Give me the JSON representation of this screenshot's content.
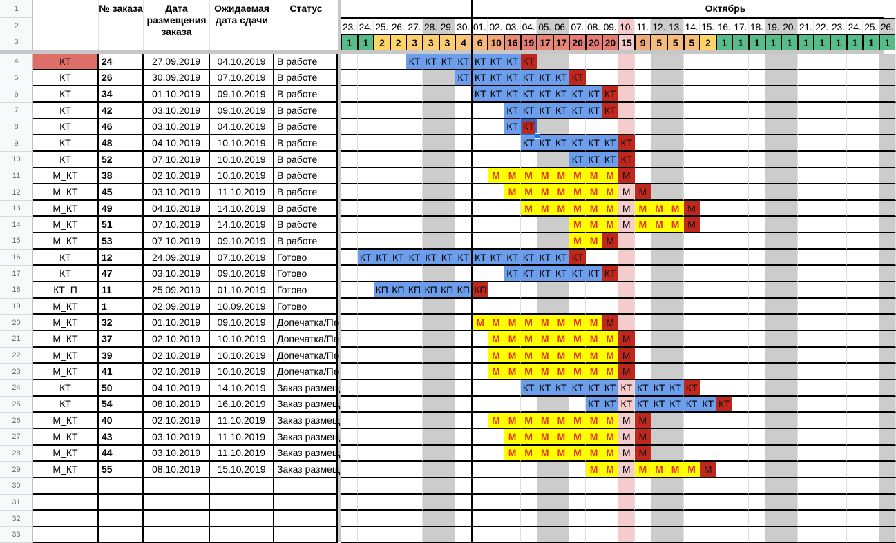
{
  "header": {
    "type_col": "",
    "num": "№ заказа",
    "placed": "Дата размещения заказа",
    "due": "Ожидаемая дата сдачи",
    "status": "Статус"
  },
  "month": "Октябрь",
  "days": [
    {
      "label": "23.",
      "load": 1
    },
    {
      "label": "24.",
      "load": 1
    },
    {
      "label": "25.",
      "load": 2
    },
    {
      "label": "26.",
      "load": 2
    },
    {
      "label": "27.",
      "load": 3
    },
    {
      "label": "28.",
      "load": 3
    },
    {
      "label": "29.",
      "load": 3
    },
    {
      "label": "30.",
      "load": 4
    },
    {
      "label": "01.",
      "load": 6
    },
    {
      "label": "02.",
      "load": 10
    },
    {
      "label": "03.",
      "load": 16
    },
    {
      "label": "04.",
      "load": 19
    },
    {
      "label": "05.",
      "load": 17
    },
    {
      "label": "06.",
      "load": 17
    },
    {
      "label": "07.",
      "load": 20
    },
    {
      "label": "08.",
      "load": 20
    },
    {
      "label": "09.",
      "load": 20
    },
    {
      "label": "10.",
      "load": 15
    },
    {
      "label": "11.",
      "load": 9
    },
    {
      "label": "12.",
      "load": 5
    },
    {
      "label": "13.",
      "load": 5
    },
    {
      "label": "14.",
      "load": 5
    },
    {
      "label": "15.",
      "load": 2
    },
    {
      "label": "16.",
      "load": 1
    },
    {
      "label": "17.",
      "load": 1
    },
    {
      "label": "18.",
      "load": 1
    },
    {
      "label": "19.",
      "load": 1
    },
    {
      "label": "20.",
      "load": 1
    },
    {
      "label": "21.",
      "load": 1
    },
    {
      "label": "22.",
      "load": 1
    },
    {
      "label": "23.",
      "load": 1
    },
    {
      "label": "24.",
      "load": 1
    },
    {
      "label": "25.",
      "load": 1
    },
    {
      "label": "26.",
      "load": 1
    }
  ],
  "weekends": [
    "28.09",
    "29.09",
    "05.10",
    "06.10",
    "12.10",
    "13.10",
    "19.10",
    "20.10",
    "26.10"
  ],
  "today": "10.10",
  "selected_cell": {
    "row": 8,
    "date": "04.10"
  },
  "colors": {
    "work": "#6d9eeb",
    "deadline": "#c0271d",
    "m": "#ffff00",
    "m_text": "#e8301c",
    "weekend": "#cccccc",
    "today": "#f4cccc",
    "highlight": "#dd6f68",
    "load_low": "#57bb8a",
    "load_mid": "#ffd666",
    "load_high": "#e67c73"
  },
  "rows": [
    {
      "n": "1"
    },
    {
      "n": "2"
    },
    {
      "n": "3"
    },
    {
      "n": "4",
      "type": "КТ",
      "highlight": true,
      "num": "24",
      "placed": "27.09.2019",
      "due": "04.10.2019",
      "status": "В работе",
      "bars": [
        {
          "text": "КТ",
          "from": "27.09",
          "to": "03.10",
          "kind": "work"
        },
        {
          "text": "КТ",
          "from": "04.10",
          "to": "04.10",
          "kind": "deadline"
        }
      ]
    },
    {
      "n": "5",
      "type": "КТ",
      "num": "26",
      "placed": "30.09.2019",
      "due": "07.10.2019",
      "status": "В работе",
      "bars": [
        {
          "text": "КТ",
          "from": "30.09",
          "to": "06.10",
          "kind": "work"
        },
        {
          "text": "КТ",
          "from": "07.10",
          "to": "07.10",
          "kind": "deadline"
        }
      ]
    },
    {
      "n": "6",
      "type": "КТ",
      "num": "34",
      "placed": "01.10.2019",
      "due": "09.10.2019",
      "status": "В работе",
      "bars": [
        {
          "text": "КТ",
          "from": "01.10",
          "to": "08.10",
          "kind": "work"
        },
        {
          "text": "КТ",
          "from": "09.10",
          "to": "09.10",
          "kind": "deadline"
        }
      ]
    },
    {
      "n": "7",
      "type": "КТ",
      "num": "42",
      "placed": "03.10.2019",
      "due": "09.10.2019",
      "status": "В работе",
      "bars": [
        {
          "text": "КТ",
          "from": "03.10",
          "to": "08.10",
          "kind": "work"
        },
        {
          "text": "КТ",
          "from": "09.10",
          "to": "09.10",
          "kind": "deadline"
        }
      ]
    },
    {
      "n": "8",
      "type": "КТ",
      "num": "46",
      "placed": "03.10.2019",
      "due": "04.10.2019",
      "status": "В работе",
      "bars": [
        {
          "text": "КТ",
          "from": "03.10",
          "to": "03.10",
          "kind": "work"
        },
        {
          "text": "КТ",
          "from": "04.10",
          "to": "04.10",
          "kind": "deadline"
        }
      ]
    },
    {
      "n": "9",
      "type": "КТ",
      "num": "48",
      "placed": "04.10.2019",
      "due": "10.10.2019",
      "status": "В работе",
      "bars": [
        {
          "text": "КТ",
          "from": "04.10",
          "to": "09.10",
          "kind": "work"
        },
        {
          "text": "КТ",
          "from": "10.10",
          "to": "10.10",
          "kind": "deadline"
        }
      ]
    },
    {
      "n": "10",
      "type": "КТ",
      "num": "52",
      "placed": "07.10.2019",
      "due": "10.10.2019",
      "status": "В работе",
      "bars": [
        {
          "text": "КТ",
          "from": "07.10",
          "to": "09.10",
          "kind": "work"
        },
        {
          "text": "КТ",
          "from": "10.10",
          "to": "10.10",
          "kind": "deadline"
        }
      ]
    },
    {
      "n": "11",
      "type": "М_КТ",
      "num": "38",
      "placed": "02.10.2019",
      "due": "10.10.2019",
      "status": "В работе",
      "bars": [
        {
          "text": "М",
          "from": "02.10",
          "to": "09.10",
          "kind": "m"
        },
        {
          "text": "М",
          "from": "10.10",
          "to": "10.10",
          "kind": "deadline"
        }
      ]
    },
    {
      "n": "12",
      "type": "М_КТ",
      "num": "45",
      "placed": "03.10.2019",
      "due": "11.10.2019",
      "status": "В работе",
      "bars": [
        {
          "text": "М",
          "from": "03.10",
          "to": "09.10",
          "kind": "m"
        },
        {
          "text": "М",
          "from": "10.10",
          "to": "10.10",
          "kind": "plain"
        },
        {
          "text": "М",
          "from": "11.10",
          "to": "11.10",
          "kind": "deadline"
        }
      ]
    },
    {
      "n": "13",
      "type": "М_КТ",
      "num": "49",
      "placed": "04.10.2019",
      "due": "14.10.2019",
      "status": "В работе",
      "bars": [
        {
          "text": "М",
          "from": "04.10",
          "to": "09.10",
          "kind": "m"
        },
        {
          "text": "М",
          "from": "10.10",
          "to": "10.10",
          "kind": "plain"
        },
        {
          "text": "М",
          "from": "11.10",
          "to": "13.10",
          "kind": "m"
        },
        {
          "text": "М",
          "from": "14.10",
          "to": "14.10",
          "kind": "deadline"
        }
      ]
    },
    {
      "n": "14",
      "type": "М_КТ",
      "num": "51",
      "placed": "07.10.2019",
      "due": "14.10.2019",
      "status": "В работе",
      "bars": [
        {
          "text": "М",
          "from": "07.10",
          "to": "09.10",
          "kind": "m"
        },
        {
          "text": "М",
          "from": "10.10",
          "to": "10.10",
          "kind": "plain"
        },
        {
          "text": "М",
          "from": "11.10",
          "to": "13.10",
          "kind": "m"
        },
        {
          "text": "М",
          "from": "14.10",
          "to": "14.10",
          "kind": "deadline"
        }
      ]
    },
    {
      "n": "15",
      "type": "М_КТ",
      "num": "53",
      "placed": "07.10.2019",
      "due": "09.10.2019",
      "status": "В работе",
      "bars": [
        {
          "text": "М",
          "from": "07.10",
          "to": "08.10",
          "kind": "m"
        },
        {
          "text": "М",
          "from": "09.10",
          "to": "09.10",
          "kind": "deadline"
        }
      ]
    },
    {
      "n": "16",
      "type": "КТ",
      "num": "12",
      "placed": "24.09.2019",
      "due": "07.10.2019",
      "status": "Готово",
      "bars": [
        {
          "text": "КТ",
          "from": "24.09",
          "to": "06.10",
          "kind": "work"
        },
        {
          "text": "КТ",
          "from": "07.10",
          "to": "07.10",
          "kind": "deadline"
        }
      ]
    },
    {
      "n": "17",
      "type": "КТ",
      "num": "47",
      "placed": "03.10.2019",
      "due": "09.10.2019",
      "status": "Готово",
      "bars": [
        {
          "text": "КТ",
          "from": "03.10",
          "to": "08.10",
          "kind": "work"
        },
        {
          "text": "КТ",
          "from": "09.10",
          "to": "09.10",
          "kind": "deadline"
        }
      ]
    },
    {
      "n": "18",
      "type": "КТ_П",
      "num": "11",
      "placed": "25.09.2019",
      "due": "01.10.2019",
      "status": "Готово",
      "bars": [
        {
          "text": "КП",
          "from": "25.09",
          "to": "30.09",
          "kind": "work"
        },
        {
          "text": "КП",
          "from": "01.10",
          "to": "01.10",
          "kind": "deadline"
        }
      ]
    },
    {
      "n": "19",
      "type": "М_КТ",
      "num": "1",
      "placed": "02.09.2019",
      "due": "10.09.2019",
      "status": "Готово",
      "bars": []
    },
    {
      "n": "20",
      "type": "М_КТ",
      "num": "32",
      "placed": "01.10.2019",
      "due": "09.10.2019",
      "status": "Допечатка/Пе",
      "bars": [
        {
          "text": "М",
          "from": "01.10",
          "to": "08.10",
          "kind": "m"
        },
        {
          "text": "М",
          "from": "09.10",
          "to": "09.10",
          "kind": "deadline"
        }
      ]
    },
    {
      "n": "21",
      "type": "М_КТ",
      "num": "37",
      "placed": "02.10.2019",
      "due": "10.10.2019",
      "status": "Допечатка/Пе",
      "bars": [
        {
          "text": "М",
          "from": "02.10",
          "to": "09.10",
          "kind": "m"
        },
        {
          "text": "М",
          "from": "10.10",
          "to": "10.10",
          "kind": "deadline"
        }
      ]
    },
    {
      "n": "22",
      "type": "М_КТ",
      "num": "39",
      "placed": "02.10.2019",
      "due": "10.10.2019",
      "status": "Допечатка/Пе",
      "bars": [
        {
          "text": "М",
          "from": "02.10",
          "to": "09.10",
          "kind": "m"
        },
        {
          "text": "М",
          "from": "10.10",
          "to": "10.10",
          "kind": "deadline"
        }
      ]
    },
    {
      "n": "23",
      "type": "М_КТ",
      "num": "41",
      "placed": "02.10.2019",
      "due": "10.10.2019",
      "status": "Допечатка/Пе",
      "bars": [
        {
          "text": "М",
          "from": "02.10",
          "to": "09.10",
          "kind": "m"
        },
        {
          "text": "М",
          "from": "10.10",
          "to": "10.10",
          "kind": "deadline"
        }
      ]
    },
    {
      "n": "24",
      "type": "КТ",
      "num": "50",
      "placed": "04.10.2019",
      "due": "14.10.2019",
      "status": "Заказ размещ",
      "bars": [
        {
          "text": "КТ",
          "from": "04.10",
          "to": "09.10",
          "kind": "work"
        },
        {
          "text": "КТ",
          "from": "10.10",
          "to": "10.10",
          "kind": "plain"
        },
        {
          "text": "КТ",
          "from": "11.10",
          "to": "13.10",
          "kind": "work"
        },
        {
          "text": "КТ",
          "from": "14.10",
          "to": "14.10",
          "kind": "deadline"
        }
      ]
    },
    {
      "n": "25",
      "type": "КТ",
      "num": "54",
      "placed": "08.10.2019",
      "due": "16.10.2019",
      "status": "Заказ размещ",
      "bars": [
        {
          "text": "КТ",
          "from": "08.10",
          "to": "09.10",
          "kind": "work"
        },
        {
          "text": "КТ",
          "from": "10.10",
          "to": "10.10",
          "kind": "plain"
        },
        {
          "text": "КТ",
          "from": "11.10",
          "to": "15.10",
          "kind": "work"
        },
        {
          "text": "КТ",
          "from": "16.10",
          "to": "16.10",
          "kind": "deadline"
        }
      ]
    },
    {
      "n": "26",
      "type": "М_КТ",
      "num": "40",
      "placed": "02.10.2019",
      "due": "11.10.2019",
      "status": "Заказ размещ",
      "bars": [
        {
          "text": "М",
          "from": "02.10",
          "to": "09.10",
          "kind": "m"
        },
        {
          "text": "М",
          "from": "10.10",
          "to": "10.10",
          "kind": "plain"
        },
        {
          "text": "М",
          "from": "11.10",
          "to": "11.10",
          "kind": "deadline"
        }
      ]
    },
    {
      "n": "27",
      "type": "М_КТ",
      "num": "43",
      "placed": "03.10.2019",
      "due": "11.10.2019",
      "status": "Заказ размещ",
      "bars": [
        {
          "text": "М",
          "from": "03.10",
          "to": "09.10",
          "kind": "m"
        },
        {
          "text": "М",
          "from": "10.10",
          "to": "10.10",
          "kind": "plain"
        },
        {
          "text": "М",
          "from": "11.10",
          "to": "11.10",
          "kind": "deadline"
        }
      ]
    },
    {
      "n": "28",
      "type": "М_КТ",
      "num": "44",
      "placed": "03.10.2019",
      "due": "11.10.2019",
      "status": "Заказ размещ",
      "bars": [
        {
          "text": "М",
          "from": "03.10",
          "to": "09.10",
          "kind": "m"
        },
        {
          "text": "М",
          "from": "10.10",
          "to": "10.10",
          "kind": "plain"
        },
        {
          "text": "М",
          "from": "11.10",
          "to": "11.10",
          "kind": "deadline"
        }
      ]
    },
    {
      "n": "29",
      "type": "М_КТ",
      "num": "55",
      "placed": "08.10.2019",
      "due": "15.10.2019",
      "status": "Заказ размещ",
      "bars": [
        {
          "text": "М",
          "from": "08.10",
          "to": "09.10",
          "kind": "m"
        },
        {
          "text": "М",
          "from": "10.10",
          "to": "10.10",
          "kind": "plain"
        },
        {
          "text": "М",
          "from": "11.10",
          "to": "14.10",
          "kind": "m"
        },
        {
          "text": "М",
          "from": "15.10",
          "to": "15.10",
          "kind": "deadline"
        }
      ]
    },
    {
      "n": "30"
    },
    {
      "n": "31"
    },
    {
      "n": "32"
    },
    {
      "n": "33"
    }
  ]
}
